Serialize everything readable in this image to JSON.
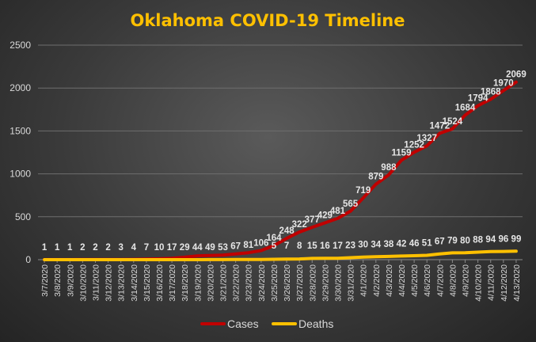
{
  "chart_data": {
    "type": "line",
    "title": "Oklahoma  COVID-19  Timeline",
    "xlabel": "",
    "ylabel": "",
    "ylim": [
      0,
      2500
    ],
    "yticks": [
      0,
      500,
      1000,
      1500,
      2000,
      2500
    ],
    "grid": true,
    "legend": "bottom",
    "x": [
      "3/7/2020",
      "3/8/2020",
      "3/9/2020",
      "3/10/2020",
      "3/11/2020",
      "3/12/2020",
      "3/13/2020",
      "3/14/2020",
      "3/15/2020",
      "3/16/2020",
      "3/17/2020",
      "3/18/2020",
      "3/19/2020",
      "3/20/2020",
      "3/21/2020",
      "3/22/2020",
      "3/23/2020",
      "3/24/2020",
      "3/25/2020",
      "3/26/2020",
      "3/27/2020",
      "3/28/2020",
      "3/29/2020",
      "3/30/2020",
      "3/31/2020",
      "4/1/2020",
      "4/2/2020",
      "4/3/2020",
      "4/4/2020",
      "4/5/2020",
      "4/6/2020",
      "4/7/2020",
      "4/8/2020",
      "4/9/2020",
      "4/10/2020",
      "4/11/2020",
      "4/12/2020",
      "4/13/2020"
    ],
    "series": [
      {
        "name": "Cases",
        "color": "#c00000",
        "values": [
          1,
          1,
          1,
          2,
          2,
          2,
          3,
          4,
          7,
          10,
          17,
          29,
          44,
          49,
          53,
          67,
          81,
          106,
          164,
          248,
          322,
          377,
          429,
          481,
          565,
          719,
          879,
          988,
          1159,
          1252,
          1327,
          1472,
          1524,
          1684,
          1794,
          1868,
          1970,
          2069
        ]
      },
      {
        "name": "Deaths",
        "color": "#ffc000",
        "values": [
          null,
          null,
          null,
          null,
          null,
          null,
          null,
          null,
          null,
          null,
          null,
          null,
          null,
          1,
          1,
          2,
          2,
          3,
          5,
          7,
          8,
          15,
          16,
          17,
          23,
          30,
          34,
          38,
          42,
          46,
          51,
          67,
          79,
          80,
          88,
          94,
          96,
          99
        ]
      }
    ]
  },
  "colors": {
    "title": "#ffc000",
    "axis_text": "#d9d9d9",
    "grid": "#6e6e6e",
    "label_text": "#e6e6e6"
  }
}
